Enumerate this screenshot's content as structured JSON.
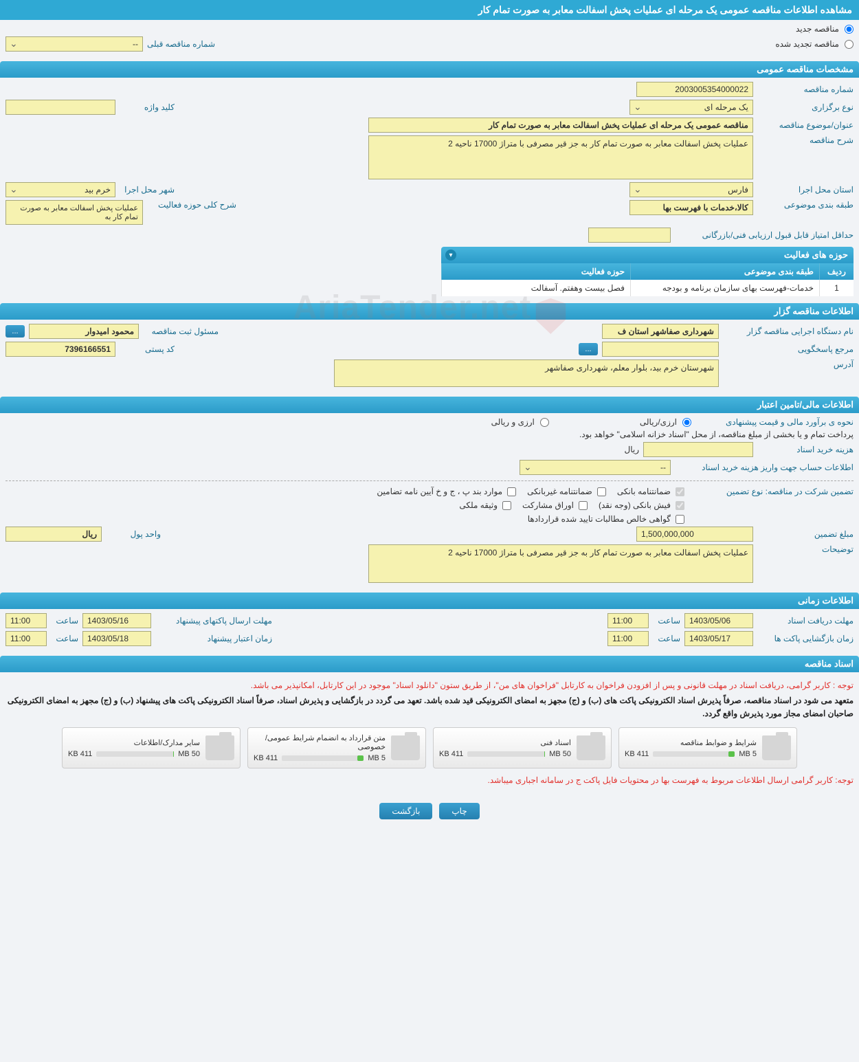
{
  "page_title": "مشاهده اطلاعات مناقصه عمومی یک مرحله ای عملیات پخش اسفالت معابر به صورت تمام کار",
  "top_radios": {
    "new_label": "مناقصه جدید",
    "renewed_label": "مناقصه تجدید شده"
  },
  "prev_number": {
    "label": "شماره مناقصه قبلی",
    "value": "--"
  },
  "sections": {
    "general": {
      "header": "مشخصات مناقصه عمومی",
      "fields": {
        "number_label": "شماره مناقصه",
        "number_value": "2003005354000022",
        "type_label": "نوع برگزاری",
        "type_value": "یک مرحله ای",
        "keyword_label": "کلید واژه",
        "keyword_value": "",
        "subject_label": "عنوان/موضوع مناقصه",
        "subject_value": "مناقصه عمومی یک مرحله ای عملیات پخش اسفالت معابر به صورت تمام کار",
        "desc_label": "شرح مناقصه",
        "desc_value": "عملیات پخش اسفالت معابر به صورت تمام کار به جز قیر مصرفی با متراژ 17000 ناحیه 2",
        "province_label": "استان محل اجرا",
        "province_value": "فارس",
        "city_label": "شهر محل اجرا",
        "city_value": "خرم بید",
        "category_label": "طبقه بندی موضوعی",
        "category_value": "کالا،خدمات با فهرست بها",
        "activity_desc_label": "شرح کلی حوزه فعالیت",
        "activity_desc_value": "عملیات پخش اسفالت معابر به صورت تمام کار به",
        "min_score_label": "حداقل امتیاز قابل قبول ارزیابی فنی/بازرگانی",
        "min_score_value": ""
      },
      "activity_table": {
        "header": "حوزه های فعالیت",
        "cols": {
          "idx": "ردیف",
          "cat": "طبقه بندی موضوعی",
          "act": "حوزه فعالیت"
        },
        "rows": [
          {
            "idx": "1",
            "cat": "خدمات-فهرست بهای سازمان برنامه و بودجه",
            "act": "فصل بیست وهفتم. آسفالت"
          }
        ]
      }
    },
    "organizer": {
      "header": "اطلاعات مناقصه گزار",
      "fields": {
        "org_label": "نام دستگاه اجرایی مناقصه گزار",
        "org_value": "شهرداری صفاشهر استان ف",
        "reg_owner_label": "مسئول ثبت مناقصه",
        "reg_owner_value": "محمود امیدوار",
        "ref_label": "مرجع پاسخگویی",
        "ref_value": "",
        "postcode_label": "کد پستی",
        "postcode_value": "7396166551",
        "address_label": "آدرس",
        "address_value": "شهرستان خرم بید، بلوار معلم، شهرداری صفاشهر"
      }
    },
    "financial": {
      "header": "اطلاعات مالی/تامین اعتبار",
      "fields": {
        "estimate_label": "نحوه ی برآورد مالی و قیمت پیشنهادی",
        "radio1": "ارزی/ریالی",
        "radio2": "ارزی و ریالی",
        "treasury_note": "پرداخت تمام و یا بخشی از مبلغ مناقصه، از محل \"اسناد خزانه اسلامی\" خواهد بود.",
        "doc_cost_label": "هزینه خرید اسناد",
        "doc_cost_value": "",
        "currency": "ریال",
        "account_label": "اطلاعات حساب جهت واریز هزینه خرید اسناد",
        "account_value": "--",
        "guarantee_type_label": "تضمین شرکت در مناقصه:    نوع تضمین",
        "cb1": "ضمانتنامه بانکی",
        "cb2": "ضمانتنامه غیربانکی",
        "cb3": "موارد بند پ ، ج و خ آیین نامه تضامین",
        "cb4": "فیش بانکی (وجه نقد)",
        "cb5": "اوراق مشارکت",
        "cb6": "وثیقه ملکی",
        "cb7": "گواهی خالص مطالبات تایید شده قراردادها",
        "guarantee_amount_label": "مبلغ تضمین",
        "guarantee_amount_value": "1,500,000,000",
        "unit_label": "واحد پول",
        "unit_value": "ریال",
        "explain_label": "توضیحات",
        "explain_value": "عملیات پخش اسفالت معابر به صورت تمام کار به جز قیر مصرفی با متراژ 17000 ناحیه 2"
      }
    },
    "timing": {
      "header": "اطلاعات زمانی",
      "fields": {
        "receive_label": "مهلت دریافت اسناد",
        "receive_date": "1403/05/06",
        "receive_time": "11:00",
        "send_label": "مهلت ارسال پاکتهای پیشنهاد",
        "send_date": "1403/05/16",
        "send_time": "11:00",
        "open_label": "زمان بازگشایی پاکت ها",
        "open_date": "1403/05/17",
        "open_time": "11:00",
        "valid_label": "زمان اعتبار پیشنهاد",
        "valid_date": "1403/05/18",
        "valid_time": "11:00",
        "time_word": "ساعت"
      }
    },
    "docs": {
      "header": "اسناد مناقصه",
      "note_red": "توجه : کاربر گرامی، دریافت اسناد در مهلت قانونی و پس از افزودن فراخوان به کارتابل \"فراخوان های من\"، از طریق ستون \"دانلود اسناد\" موجود در این کارتابل، امکانپذیر می باشد.",
      "note_black": "متعهد می شود در اسناد مناقصه، صرفاً پذیرش اسناد الکترونیکی پاکت های (ب) و (ج) مجهز به امضای الکترونیکی قید شده باشد. تعهد می گردد در بازگشایی و پذیرش اسناد، صرفاً اسناد الکترونیکی پاکت های پیشنهاد (ب) و (ج) مجهز به امضای الکترونیکی صاحبان امضای مجاز مورد پذیرش واقع گردد.",
      "files": [
        {
          "title": "شرایط و ضوابط مناقصه",
          "used": "411 KB",
          "total": "5 MB",
          "pct": 8
        },
        {
          "title": "اسناد فنی",
          "used": "411 KB",
          "total": "50 MB",
          "pct": 1
        },
        {
          "title": "متن قرارداد به انضمام شرایط عمومی/خصوصی",
          "used": "411 KB",
          "total": "5 MB",
          "pct": 8
        },
        {
          "title": "سایر مدارک/اطلاعات",
          "used": "411 KB",
          "total": "50 MB",
          "pct": 1
        }
      ],
      "bottom_note": "توجه: کاربر گرامی ارسال اطلاعات مربوط به فهرست بها در محتویات فایل پاکت ج در سامانه اجباری میباشد."
    }
  },
  "buttons": {
    "print": "چاپ",
    "back": "بازگشت",
    "ellipsis": "..."
  },
  "watermark": "AriaTender.net",
  "colors": {
    "header_bg": "#2fa9d4",
    "section_bg_from": "#47b5dd",
    "section_bg_to": "#2b9bc9",
    "input_bg": "#f6f2b0",
    "input_border": "#a8a87a",
    "label_color": "#1a6d8f",
    "note_red": "#e2302c",
    "bar_green": "#5bc24a"
  }
}
